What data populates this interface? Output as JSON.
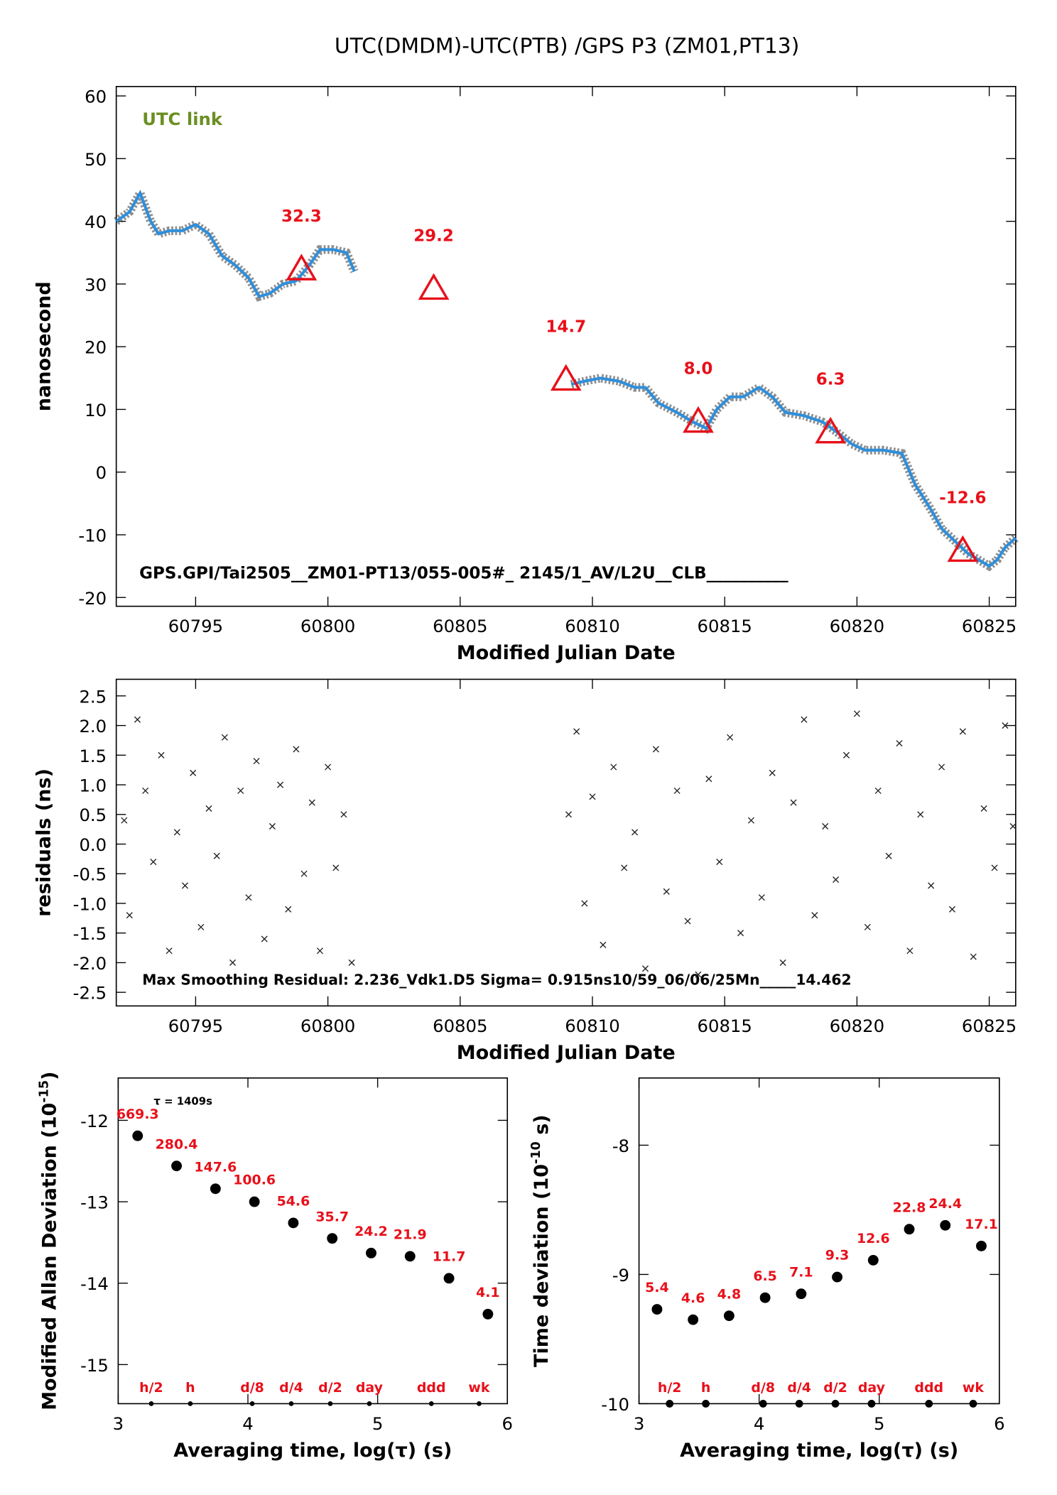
{
  "chart_data": [
    {
      "type": "line",
      "title": "UTC(DMDM)-UTC(PTB)  /GPS  P3  (ZM01,PT13)",
      "x_label": "Modified Julian Date",
      "y_label": "nanosecond",
      "annotations": [
        "UTC link",
        "GPS.GPI/Tai2505__ZM01-PT13/055-005#_  2145/1_AV/L2U__CLB__________"
      ],
      "xlim": [
        60792,
        60826
      ],
      "xticks": [
        60795,
        60800,
        60805,
        60810,
        60815,
        60820,
        60825
      ],
      "ylim": [
        -21.4,
        61.5
      ],
      "yticks": [
        -20,
        -10,
        0,
        10,
        20,
        30,
        40,
        50,
        60
      ],
      "series": [
        {
          "marker": "line",
          "color": "#2e8fdc",
          "x": [
            60792,
            60792.5,
            60792.9,
            60793.3,
            60793.6,
            60794,
            60794.5,
            60795,
            60795.5,
            60796,
            60796.5,
            60797,
            60797.4,
            60797.8,
            60798.3,
            60798.8,
            60799.3,
            60799.7,
            60800.2,
            60800.7,
            60801,
            60805,
            60809.2,
            60809.7,
            60810.3,
            60811,
            60811.6,
            60812,
            60812.5,
            60813.2,
            60813.8,
            60814.3,
            60814.7,
            60815.2,
            60815.7,
            60816.3,
            60816.8,
            60817.3,
            60818,
            60818.7,
            60819.2,
            60819.8,
            60820.3,
            60821,
            60821.7,
            60822.2,
            60822.8,
            60823.2,
            60823.7,
            60824.2,
            60824.6,
            60825,
            60825.3,
            60825.6,
            60826
          ],
          "values": [
            40,
            41.5,
            44.5,
            40,
            38,
            38.5,
            38.5,
            39.5,
            38,
            34.5,
            33,
            31,
            28,
            28.5,
            30,
            30.5,
            33,
            35.5,
            35.5,
            35,
            32,
            null,
            14,
            14.5,
            15,
            14.5,
            13.5,
            13.5,
            11,
            9.5,
            8,
            7,
            10,
            12,
            12,
            13.5,
            12,
            9.5,
            9,
            8,
            6.5,
            4.5,
            3.5,
            3.5,
            3,
            -2,
            -6,
            -9,
            -11,
            -13,
            -14,
            -15,
            -14,
            -12,
            -10.5
          ]
        },
        {
          "marker": "triangle",
          "color": "#e8101a",
          "x": [
            60799,
            60804,
            60809,
            60814,
            60819,
            60824
          ],
          "values": [
            32.3,
            29.2,
            14.7,
            8.0,
            6.3,
            -12.6
          ],
          "value_labels": [
            "32.3",
            "29.2",
            "14.7",
            "8.0",
            "6.3",
            "-12.6"
          ]
        }
      ]
    },
    {
      "type": "scatter",
      "x_label": "Modified Julian Date",
      "y_label": "residuals (ns)",
      "annotations": [
        "Max Smoothing Residual: 2.236_Vdk1.D5  Sigma= 0.915ns10/59_06/06/25Mn_____14.462"
      ],
      "xlim": [
        60792,
        60826
      ],
      "xticks": [
        60795,
        60800,
        60805,
        60810,
        60815,
        60820,
        60825
      ],
      "ylim": [
        -2.73,
        2.78
      ],
      "yticks": [
        -2.5,
        {
          "value": -2,
          "label": "-2.0"
        },
        -1.5,
        {
          "value": -1,
          "label": "-1.0"
        },
        -0.5,
        {
          "value": 0,
          "label": "0.0"
        },
        0.5,
        {
          "value": 1,
          "label": "1.0"
        },
        1.5,
        {
          "value": 2,
          "label": "2.0"
        },
        2.5
      ],
      "series": [
        {
          "marker": "cross",
          "color": "#222222",
          "x": [
            60792.3,
            60792.5,
            60792.8,
            60793.1,
            60793.4,
            60793.7,
            60794,
            60794.3,
            60794.6,
            60794.9,
            60795.2,
            60795.5,
            60795.8,
            60796.1,
            60796.4,
            60796.7,
            60797,
            60797.3,
            60797.6,
            60797.9,
            60798.2,
            60798.5,
            60798.8,
            60799.1,
            60799.4,
            60799.7,
            60800,
            60800.3,
            60800.6,
            60800.9,
            60809.1,
            60809.4,
            60809.7,
            60810,
            60810.4,
            60810.8,
            60811.2,
            60811.6,
            60812,
            60812.4,
            60812.8,
            60813.2,
            60813.6,
            60814,
            60814.4,
            60814.8,
            60815.2,
            60815.6,
            60816,
            60816.4,
            60816.8,
            60817.2,
            60817.6,
            60818,
            60818.4,
            60818.8,
            60819.2,
            60819.6,
            60820,
            60820.4,
            60820.8,
            60821.2,
            60821.6,
            60822,
            60822.4,
            60822.8,
            60823.2,
            60823.6,
            60824,
            60824.4,
            60824.8,
            60825.2,
            60825.6,
            60825.9
          ],
          "values": [
            0.4,
            -1.2,
            2.1,
            0.9,
            -0.3,
            1.5,
            -1.8,
            0.2,
            -0.7,
            1.2,
            -1.4,
            0.6,
            -0.2,
            1.8,
            -2.0,
            0.9,
            -0.9,
            1.4,
            -1.6,
            0.3,
            1.0,
            -1.1,
            1.6,
            -0.5,
            0.7,
            -1.8,
            1.3,
            -0.4,
            0.5,
            -2.0,
            0.5,
            1.9,
            -1.0,
            0.8,
            -1.7,
            1.3,
            -0.4,
            0.2,
            -2.1,
            1.6,
            -0.8,
            0.9,
            -1.3,
            -2.2,
            1.1,
            -0.3,
            1.8,
            -1.5,
            0.4,
            -0.9,
            1.2,
            -2.0,
            0.7,
            2.1,
            -1.2,
            0.3,
            -0.6,
            1.5,
            2.2,
            -1.4,
            0.9,
            -0.2,
            1.7,
            -1.8,
            0.5,
            -0.7,
            1.3,
            -1.1,
            1.9,
            -1.9,
            0.6,
            -0.4,
            2.0,
            0.3
          ]
        }
      ]
    },
    {
      "type": "scatter",
      "x_label": "Averaging time, log(τ) (s)",
      "y_label": "Modified Allan Deviation (10",
      "y_label_exp": "-15",
      "y_label_end": ")",
      "annotations": [
        "τ = 1409s"
      ],
      "xlim": [
        3,
        6
      ],
      "xticks": [
        3,
        4,
        5,
        6
      ],
      "ylim": [
        -15.48,
        -11.48
      ],
      "yticks": [
        -15,
        -14,
        -13,
        -12
      ],
      "series": [
        {
          "marker": "dot",
          "color": "#000000",
          "x": [
            3.15,
            3.45,
            3.75,
            4.05,
            4.35,
            4.65,
            4.95,
            5.25,
            5.55,
            5.85
          ],
          "values": [
            -12.19,
            -12.56,
            -12.84,
            -13.0,
            -13.26,
            -13.45,
            -13.63,
            -13.67,
            -13.94,
            -14.38
          ],
          "value_labels": [
            "669.3",
            "280.4",
            "147.6",
            "100.6",
            "54.6",
            "35.7",
            "24.2",
            "21.9",
            "11.7",
            "4.1"
          ]
        }
      ],
      "markers": {
        "x": [
          3.255,
          3.556,
          4.033,
          4.334,
          4.635,
          4.936,
          5.414,
          5.782
        ],
        "labels": [
          "h/2",
          "h",
          "d/8",
          "d/4",
          "d/2",
          "day",
          "ddd",
          "wk"
        ]
      }
    },
    {
      "type": "scatter",
      "x_label": "Averaging time, log(τ) (s)",
      "y_label": "Time deviation (10",
      "y_label_exp": "-10",
      "y_label_end": " s)",
      "xlim": [
        3,
        6
      ],
      "xticks": [
        3,
        4,
        5,
        6
      ],
      "ylim": [
        -10,
        -7.48
      ],
      "yticks": [
        -10,
        -9,
        -8
      ],
      "series": [
        {
          "marker": "dot",
          "color": "#000000",
          "x": [
            3.15,
            3.45,
            3.75,
            4.05,
            4.35,
            4.65,
            4.95,
            5.25,
            5.55,
            5.85
          ],
          "values": [
            -9.27,
            -9.35,
            -9.32,
            -9.18,
            -9.15,
            -9.02,
            -8.89,
            -8.65,
            -8.62,
            -8.78
          ],
          "value_labels": [
            "5.4",
            "4.6",
            "4.8",
            "6.5",
            "7.1",
            "9.3",
            "12.6",
            "22.8",
            "24.4",
            "17.1"
          ]
        }
      ],
      "markers": {
        "x": [
          3.255,
          3.556,
          4.033,
          4.334,
          4.635,
          4.936,
          5.414,
          5.782
        ],
        "labels": [
          "h/2",
          "h",
          "d/8",
          "d/4",
          "d/2",
          "day",
          "ddd",
          "wk"
        ]
      }
    }
  ]
}
